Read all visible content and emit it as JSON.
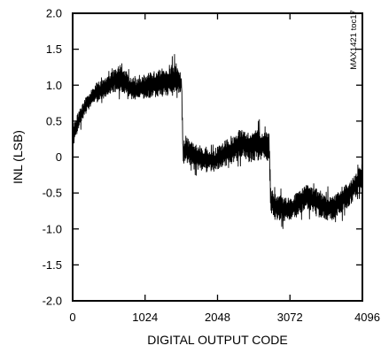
{
  "chart_data": {
    "type": "line",
    "title": "",
    "xlabel": "DIGITAL OUTPUT CODE",
    "ylabel": "INL (LSB)",
    "side_note": "MAX1421 toc17",
    "xlim": [
      0,
      4096
    ],
    "ylim": [
      -2.0,
      2.0
    ],
    "grid": false,
    "x_ticks": [
      0,
      1024,
      2048,
      3072,
      4096
    ],
    "x_tick_labels": [
      "0",
      "1024",
      "2048",
      "3072",
      "4096"
    ],
    "y_ticks": [
      2.0,
      1.5,
      1.0,
      0.5,
      0,
      -0.5,
      -1.0,
      -1.5,
      -2.0
    ],
    "y_tick_labels": [
      "2.0",
      "1.5",
      "1.0",
      "0.5",
      "0",
      "-0.5",
      "-1.0",
      "-1.5",
      "-2.0"
    ],
    "series": [
      {
        "color": "#000000",
        "envelope_x": [
          0,
          100,
          200,
          300,
          400,
          500,
          600,
          700,
          800,
          900,
          1000,
          1100,
          1200,
          1300,
          1400,
          1500,
          1540,
          1560,
          1600,
          1700,
          1800,
          1900,
          2000,
          2100,
          2200,
          2300,
          2400,
          2500,
          2600,
          2700,
          2780,
          2800,
          2850,
          2900,
          3000,
          3100,
          3200,
          3300,
          3400,
          3500,
          3600,
          3700,
          3800,
          3900,
          4000,
          4096
        ],
        "envelope_low": [
          0.15,
          0.35,
          0.55,
          0.65,
          0.7,
          0.78,
          0.8,
          0.75,
          0.75,
          0.7,
          0.72,
          0.7,
          0.7,
          0.72,
          0.68,
          0.75,
          0.82,
          -0.25,
          -0.2,
          -0.25,
          -0.3,
          -0.3,
          -0.3,
          -0.25,
          -0.25,
          -0.2,
          -0.15,
          -0.2,
          -0.2,
          -0.15,
          -0.2,
          -0.9,
          -1.0,
          -1.0,
          -1.0,
          -0.98,
          -0.9,
          -0.85,
          -0.9,
          -0.95,
          -1.0,
          -1.0,
          -0.9,
          -0.8,
          -0.7,
          -0.55
        ],
        "envelope_high": [
          0.5,
          0.75,
          0.95,
          1.1,
          1.15,
          1.2,
          1.35,
          1.45,
          1.2,
          1.15,
          1.25,
          1.3,
          1.35,
          1.38,
          1.45,
          1.4,
          1.2,
          0.35,
          0.4,
          0.3,
          0.25,
          0.25,
          0.2,
          0.3,
          0.4,
          0.45,
          0.55,
          0.5,
          0.55,
          0.5,
          0.45,
          -0.3,
          -0.4,
          -0.4,
          -0.45,
          -0.45,
          -0.35,
          -0.25,
          -0.3,
          -0.35,
          -0.4,
          -0.4,
          -0.3,
          -0.25,
          -0.1,
          0.05
        ]
      }
    ]
  }
}
